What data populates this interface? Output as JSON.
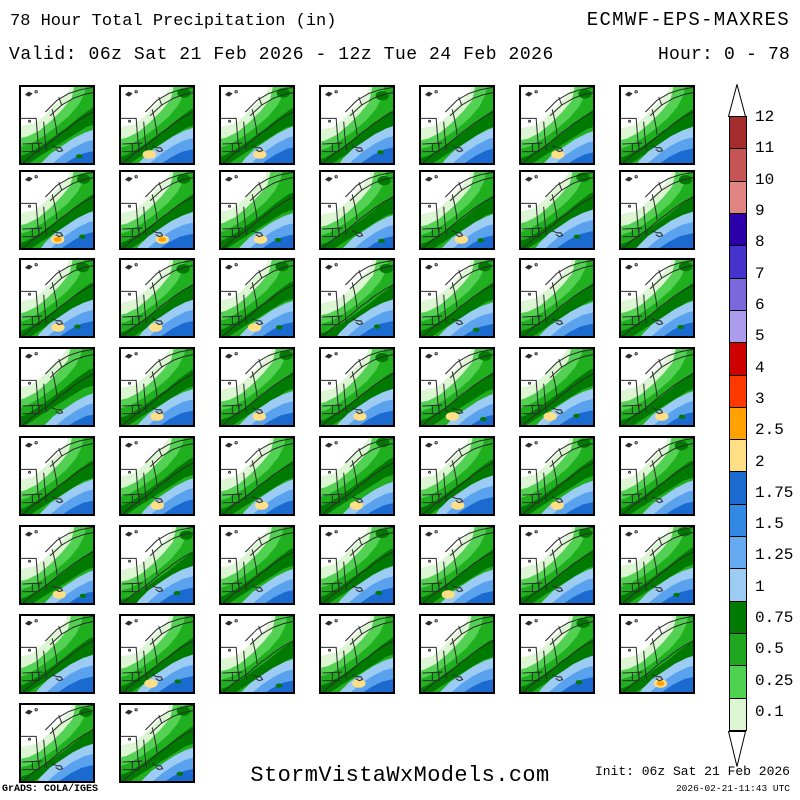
{
  "header": {
    "title": "78 Hour Total Precipitation (in)",
    "model": "ECMWF-EPS-MAXRES",
    "valid": "Valid: 06z Sat 21 Feb 2026 - 12z Tue 24 Feb 2026",
    "hour_range": "Hour: 0 - 78"
  },
  "colorbar": {
    "boundary_labels": [
      "12",
      "11",
      "10",
      "9",
      "8",
      "7",
      "6",
      "5",
      "4",
      "3",
      "2.5",
      "2",
      "1.75",
      "1.5",
      "1.25",
      "1",
      "0.75",
      "0.5",
      "0.25",
      "0.1"
    ],
    "segment_colors": [
      "#A52C2C",
      "#C75454",
      "#E08484",
      "#2B00AA",
      "#4633CC",
      "#7A68DC",
      "#AC9CEE",
      "#CE0000",
      "#FF3800",
      "#FFA200",
      "#FFDF86",
      "#1A6AD0",
      "#3388E4",
      "#66AAF0",
      "#9CCCF4",
      "#007A00",
      "#1FA81F",
      "#4FD24F",
      "#DCF5D2"
    ],
    "above_max_color": "#FFFFFF",
    "below_min_color": "#FFFFFF"
  },
  "grid": {
    "columns": 7,
    "member_count": 51,
    "spots": [
      "none",
      "yellow",
      "yellow",
      "none",
      "none",
      "yellow",
      "none",
      "orange",
      "orange",
      "yellow",
      "none",
      "yellow",
      "none",
      "none",
      "yellow",
      "yellow",
      "yellow",
      "none",
      "none",
      "none",
      "none",
      "none",
      "yellow",
      "yellow",
      "yellow",
      "yellow",
      "yellow",
      "yellow",
      "none",
      "yellow",
      "yellow",
      "yellow",
      "yellow",
      "yellow",
      "none",
      "yellow",
      "none",
      "none",
      "none",
      "yellow",
      "none",
      "none",
      "none",
      "yellow",
      "none",
      "yellow",
      "none",
      "none",
      "orange",
      "none",
      "none"
    ]
  },
  "map_palette": {
    "p010": "#DCF5D2",
    "p025": "#52D152",
    "p050": "#1FAF1F",
    "p075": "#007A00",
    "p100": "#9CCCF4",
    "p125": "#5AA2EE",
    "p150": "#1A6AD0",
    "spot_yellow": "#FFDF86",
    "spot_orange": "#FFA200",
    "border": "#2E2E2E"
  },
  "footer": {
    "watermark": "StormVistaWxModels.com",
    "init": "Init: 06z Sat 21 Feb 2026",
    "generated": "2026-02-21-11:43 UTC",
    "credit": "GrADS: COLA/IGES"
  }
}
